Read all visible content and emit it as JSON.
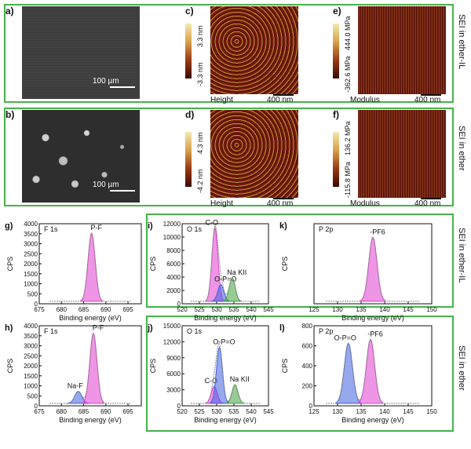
{
  "panels": {
    "a": {
      "label": "a)",
      "scale": "100 µm"
    },
    "b": {
      "label": "b)",
      "scale": "100 µm"
    },
    "c": {
      "label": "c)",
      "cmax": "3.3 nm",
      "cmin": "-3.3 nm",
      "caption": "Height",
      "scale": "400 nm"
    },
    "d": {
      "label": "d)",
      "cmax": "4.3 nm",
      "cmin": "-4.2 nm",
      "caption": "Height",
      "scale": "400 nm"
    },
    "e": {
      "label": "e)",
      "cmax": "444.0 MPa",
      "cmin": "-362.6 MPa",
      "caption": "Modulus",
      "scale": "400 nm"
    },
    "f": {
      "label": "f)",
      "cmax": "136.2 MPa",
      "cmin": "-115.8 MPa",
      "caption": "Modulus",
      "scale": "400 nm"
    }
  },
  "side_labels": {
    "row1": "SEI in ether-IL",
    "row2": "SEI in ether",
    "row3": "SEI in ether-IL",
    "row4": "SEI in ether"
  },
  "chart_data": [
    {
      "type": "line",
      "panel": "g)",
      "title": "F 1s",
      "xlabel": "Binding energy (eV)",
      "ylabel": "CPS",
      "xticks": [
        "675",
        "680",
        "685",
        "690",
        "695"
      ],
      "yticks": [
        "0",
        "500",
        "1000",
        "1500",
        "2000",
        "2500",
        "3000",
        "3500",
        "4000"
      ],
      "xlim": [
        675,
        698
      ],
      "ylim": [
        0,
        4000
      ],
      "peaks": [
        {
          "label": "P-F",
          "center": 686.8,
          "height": 3400,
          "color": "#e040d0"
        }
      ]
    },
    {
      "type": "line",
      "panel": "i)",
      "title": "O 1s",
      "xlabel": "Binding energy (eV)",
      "ylabel": "CPS",
      "xticks": [
        "520",
        "525",
        "530",
        "535",
        "540",
        "545"
      ],
      "yticks": [
        "0",
        "2000",
        "4000",
        "6000",
        "8000",
        "10000",
        "12000"
      ],
      "xlim": [
        520,
        545
      ],
      "ylim": [
        0,
        12000
      ],
      "peaks": [
        {
          "label": "C-O",
          "center": 529.5,
          "height": 11000,
          "color": "#e040d0"
        },
        {
          "label": "O-P=O",
          "center": 531.2,
          "height": 2500,
          "color": "#4060e0"
        },
        {
          "label": "Na KII",
          "center": 534.5,
          "height": 3500,
          "color": "#40a040"
        }
      ]
    },
    {
      "type": "line",
      "panel": "k)",
      "title": "P 2p",
      "xlabel": "Binding energy (eV)",
      "ylabel": "CPS",
      "xticks": [
        "125",
        "130",
        "135",
        "140",
        "145",
        "150"
      ],
      "yticks": [],
      "xlim": [
        125,
        150
      ],
      "ylim": [
        0,
        100
      ],
      "peaks": [
        {
          "label": "-PF6",
          "center": 137.5,
          "height": 80,
          "color": "#e040d0"
        }
      ]
    },
    {
      "type": "line",
      "panel": "h)",
      "title": "F 1s",
      "xlabel": "Binding energy (eV)",
      "ylabel": "CPS",
      "xticks": [
        "675",
        "680",
        "685",
        "690",
        "695"
      ],
      "yticks": [
        "0",
        "500",
        "1000",
        "1500",
        "2000",
        "2500",
        "3000",
        "3500",
        "4000"
      ],
      "xlim": [
        675,
        698
      ],
      "ylim": [
        0,
        4000
      ],
      "peaks": [
        {
          "label": "Na-F",
          "center": 683.8,
          "height": 600,
          "color": "#4060e0"
        },
        {
          "label": "P-F",
          "center": 687.2,
          "height": 3500,
          "color": "#e040d0"
        }
      ]
    },
    {
      "type": "line",
      "panel": "j)",
      "title": "O 1s",
      "xlabel": "Binding energy (eV)",
      "ylabel": "CPS",
      "xticks": [
        "520",
        "525",
        "530",
        "535",
        "540",
        "545"
      ],
      "yticks": [
        "0",
        "3000",
        "6000",
        "9000",
        "12000",
        "15000"
      ],
      "xlim": [
        520,
        545
      ],
      "ylim": [
        0,
        15000
      ],
      "peaks": [
        {
          "label": "C-O",
          "center": 529.3,
          "height": 3200,
          "color": "#e040d0"
        },
        {
          "label": "O-P=O",
          "center": 530.8,
          "height": 10500,
          "color": "#4060e0"
        },
        {
          "label": "Na KII",
          "center": 535.3,
          "height": 3500,
          "color": "#40a040"
        }
      ]
    },
    {
      "type": "line",
      "panel": "l)",
      "title": "P 2p",
      "xlabel": "Binding energy (eV)",
      "ylabel": "CPS",
      "xticks": [
        "125",
        "130",
        "135",
        "140",
        "145",
        "150"
      ],
      "yticks": [
        "0",
        "200",
        "400",
        "600",
        "800"
      ],
      "xlim": [
        125,
        150
      ],
      "ylim": [
        0,
        800
      ],
      "peaks": [
        {
          "label": "O-P=O",
          "center": 132.3,
          "height": 600,
          "color": "#4060e0"
        },
        {
          "label": "-PF6",
          "center": 137.0,
          "height": 640,
          "color": "#e040d0"
        }
      ]
    }
  ]
}
